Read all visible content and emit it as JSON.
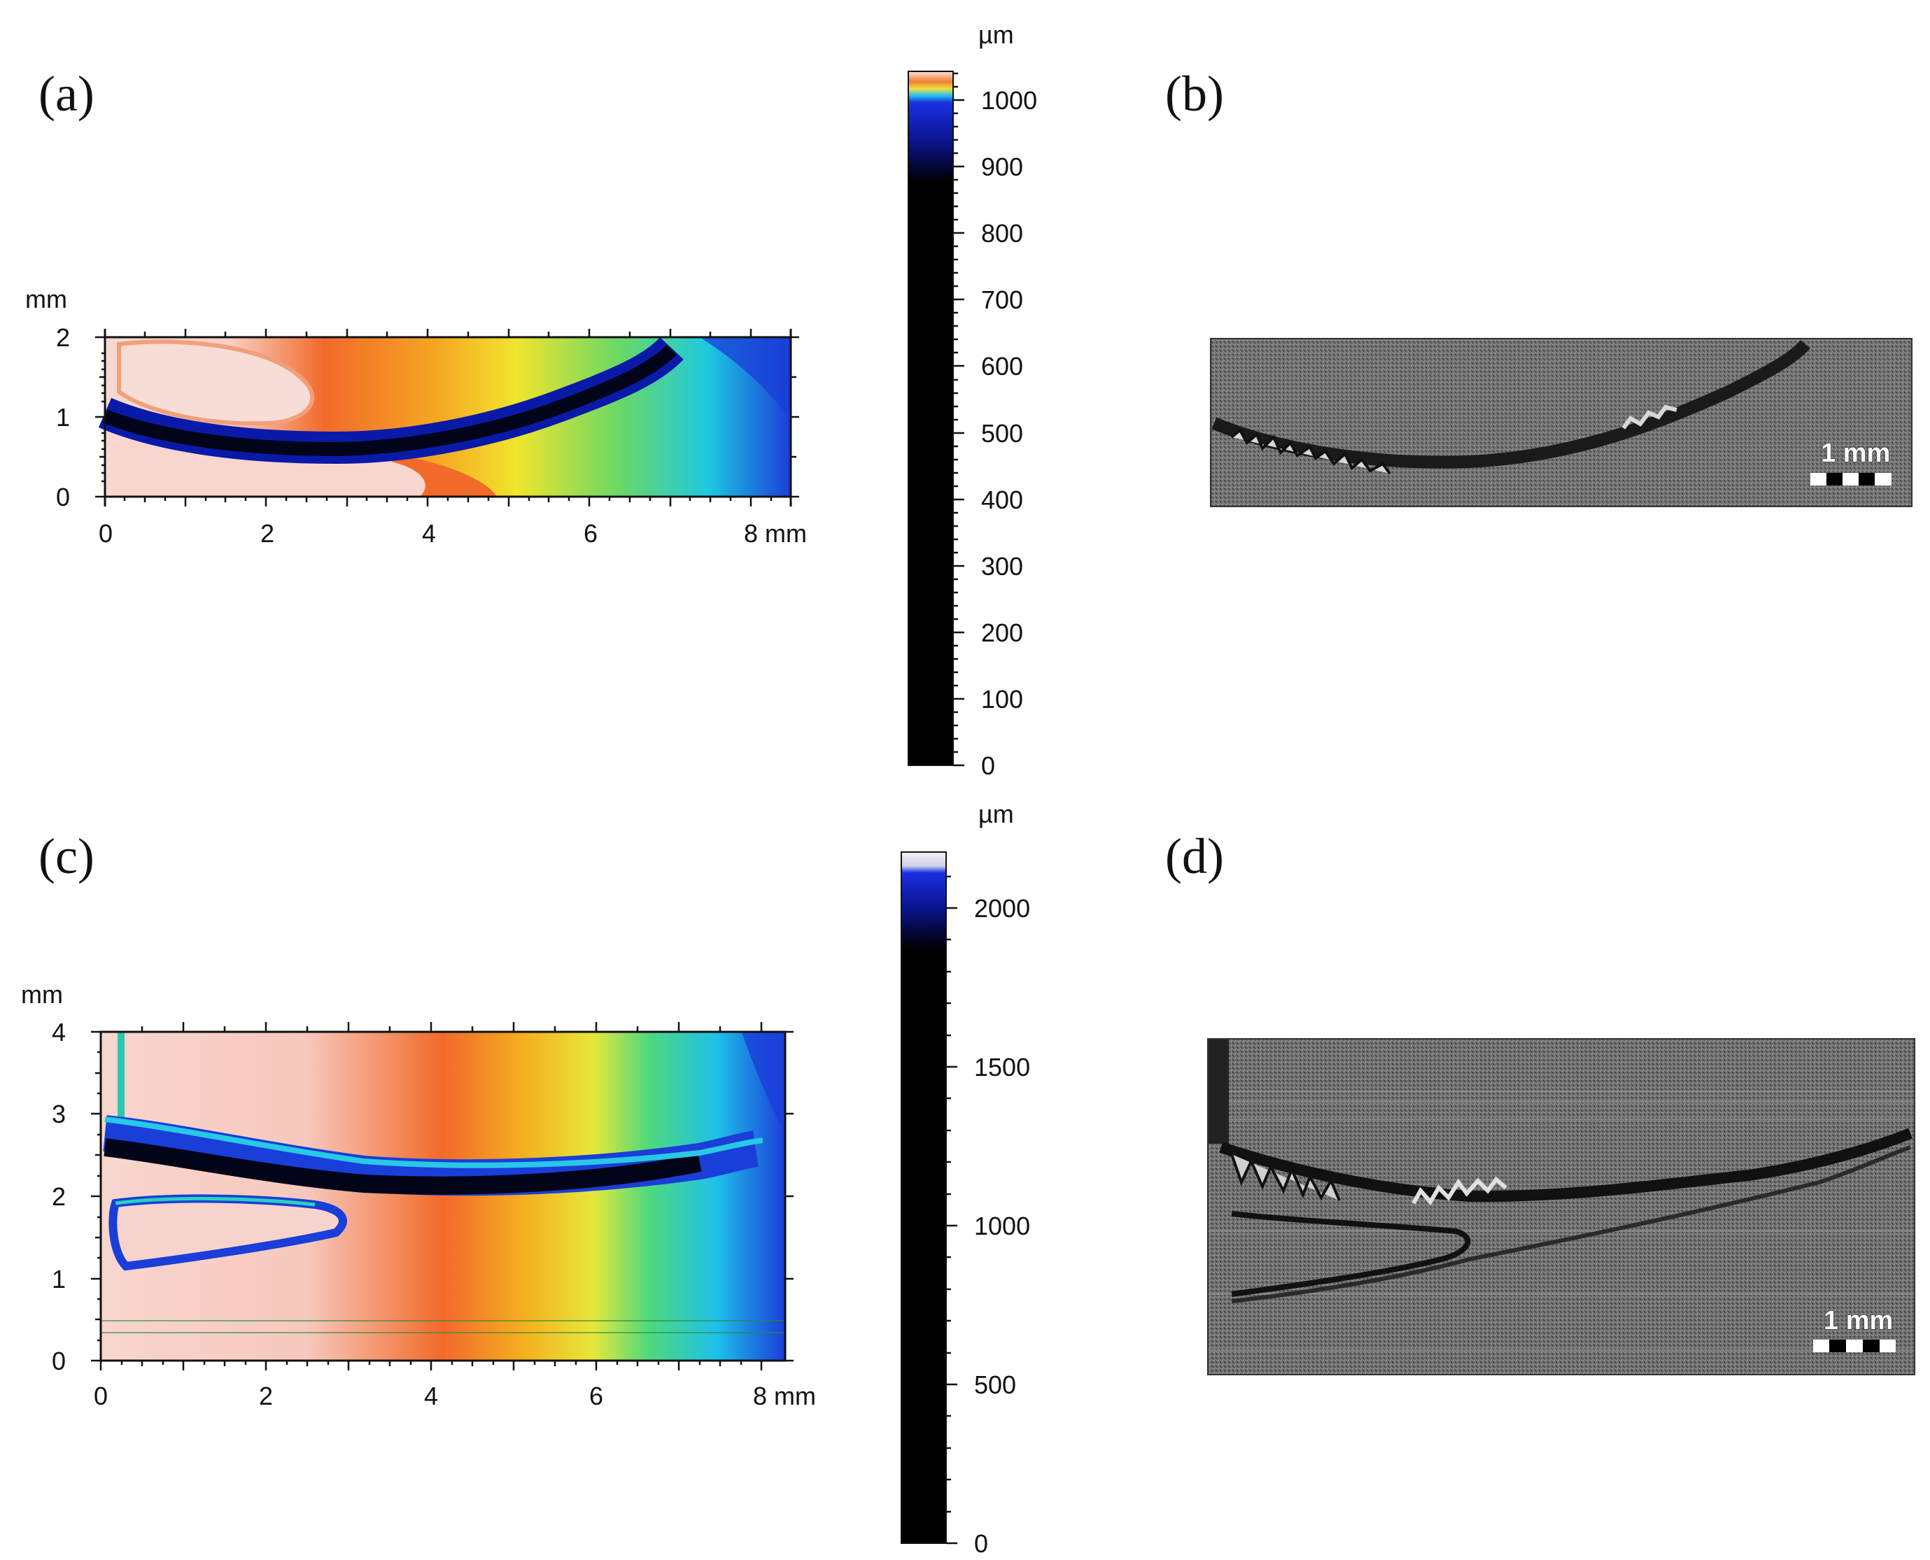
{
  "panels": {
    "a": {
      "label": "(a)",
      "y_unit": "mm",
      "x_ticks": [
        "0",
        "2",
        "4",
        "6",
        "8 mm"
      ],
      "y_ticks": [
        "0",
        "1",
        "2"
      ],
      "colorbar": {
        "unit": "µm",
        "ticks": [
          "0",
          "100",
          "200",
          "300",
          "400",
          "500",
          "600",
          "700",
          "800",
          "900",
          "1000"
        ]
      }
    },
    "b": {
      "label": "(b)",
      "scale_bar": "1 mm"
    },
    "c": {
      "label": "(c)",
      "y_unit": "mm",
      "x_ticks": [
        "0",
        "2",
        "4",
        "6",
        "8 mm"
      ],
      "y_ticks": [
        "0",
        "1",
        "2",
        "3",
        "4"
      ],
      "colorbar": {
        "unit": "µm",
        "ticks": [
          "0",
          "500",
          "1000",
          "1500",
          "2000"
        ]
      }
    },
    "d": {
      "label": "(d)",
      "scale_bar": "1 mm"
    }
  },
  "colors": {
    "map_pink": "#f8dcd6",
    "map_orange": "#f26a2a",
    "map_yellow": "#f4e52a",
    "map_green": "#58d86a",
    "map_cyan": "#19c8e8",
    "map_blue": "#1a3fd8",
    "map_dark_blue": "#050a6a",
    "map_black": "#000000",
    "sem_gray": "#6b6b6b"
  },
  "icons": {
    "scale_bar": "checkered-scale-bar"
  }
}
